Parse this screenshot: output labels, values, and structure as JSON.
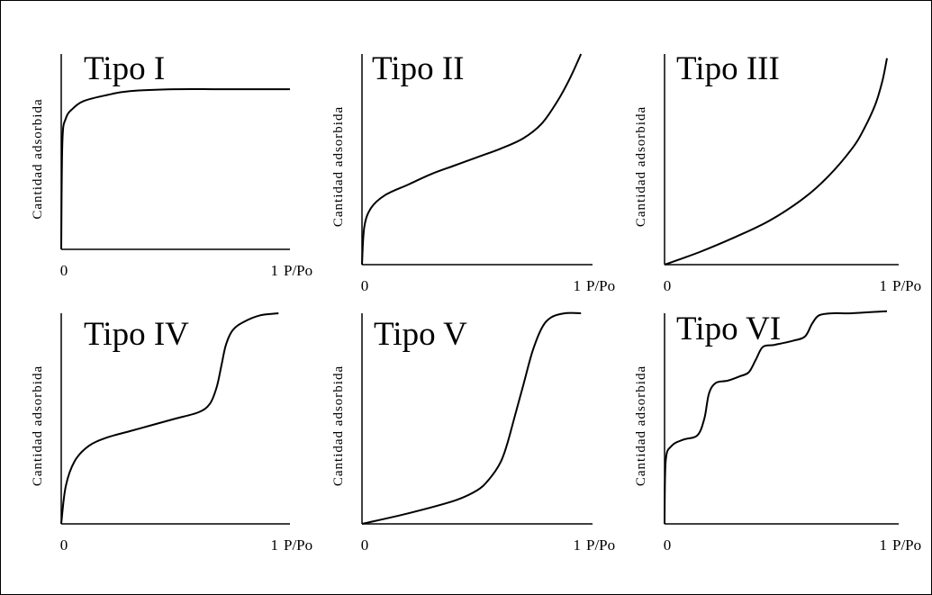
{
  "chart_data": [
    {
      "type": "line",
      "title": "Tipo I",
      "ylabel": "Cantidad adsorbida",
      "x_start_label": "0",
      "x_end_label": "1",
      "x_unit_label": "P/Po",
      "xlim": [
        0,
        1
      ],
      "ylim": [
        0,
        1
      ],
      "curve_color": "#000000",
      "series": [
        {
          "x": [
            0,
            0.005,
            0.02,
            0.05,
            0.1,
            0.2,
            0.3,
            0.5,
            0.7,
            1.0
          ],
          "values": [
            0,
            0.55,
            0.67,
            0.72,
            0.76,
            0.79,
            0.81,
            0.82,
            0.82,
            0.82
          ]
        }
      ]
    },
    {
      "type": "line",
      "title": "Tipo II",
      "ylabel": "Cantidad adsorbida",
      "x_start_label": "0",
      "x_end_label": "1",
      "x_unit_label": "P/Po",
      "xlim": [
        0,
        1
      ],
      "ylim": [
        0,
        1
      ],
      "curve_color": "#000000",
      "series": [
        {
          "x": [
            0,
            0.01,
            0.04,
            0.1,
            0.2,
            0.3,
            0.4,
            0.5,
            0.6,
            0.7,
            0.78,
            0.85,
            0.9,
            0.95
          ],
          "values": [
            0,
            0.18,
            0.27,
            0.33,
            0.38,
            0.43,
            0.47,
            0.51,
            0.55,
            0.6,
            0.67,
            0.78,
            0.88,
            1.0
          ]
        }
      ]
    },
    {
      "type": "line",
      "title": "Tipo III",
      "ylabel": "Cantidad adsorbida",
      "x_start_label": "0",
      "x_end_label": "1",
      "x_unit_label": "P/Po",
      "xlim": [
        0,
        1
      ],
      "ylim": [
        0,
        1
      ],
      "curve_color": "#000000",
      "series": [
        {
          "x": [
            0,
            0.15,
            0.3,
            0.45,
            0.6,
            0.7,
            0.8,
            0.85,
            0.9,
            0.93,
            0.95
          ],
          "values": [
            0,
            0.06,
            0.13,
            0.21,
            0.32,
            0.42,
            0.55,
            0.64,
            0.76,
            0.87,
            0.98
          ]
        }
      ]
    },
    {
      "type": "line",
      "title": "Tipo IV",
      "ylabel": "Cantidad adsorbida",
      "x_start_label": "0",
      "x_end_label": "1",
      "x_unit_label": "P/Po",
      "xlim": [
        0,
        1
      ],
      "ylim": [
        0,
        1
      ],
      "curve_color": "#000000",
      "series": [
        {
          "x": [
            0,
            0.02,
            0.06,
            0.12,
            0.2,
            0.3,
            0.4,
            0.5,
            0.6,
            0.65,
            0.68,
            0.7,
            0.72,
            0.75,
            0.8,
            0.87,
            0.95
          ],
          "values": [
            0,
            0.18,
            0.3,
            0.37,
            0.41,
            0.44,
            0.47,
            0.5,
            0.53,
            0.57,
            0.65,
            0.75,
            0.85,
            0.92,
            0.96,
            0.99,
            1.0
          ]
        }
      ]
    },
    {
      "type": "line",
      "title": "Tipo V",
      "ylabel": "Cantidad adsorbida",
      "x_start_label": "0",
      "x_end_label": "1",
      "x_unit_label": "P/Po",
      "xlim": [
        0,
        1
      ],
      "ylim": [
        0,
        1
      ],
      "curve_color": "#000000",
      "series": [
        {
          "x": [
            0,
            0.2,
            0.4,
            0.5,
            0.55,
            0.6,
            0.63,
            0.66,
            0.7,
            0.74,
            0.78,
            0.82,
            0.88,
            0.95
          ],
          "values": [
            0,
            0.05,
            0.11,
            0.16,
            0.21,
            0.29,
            0.38,
            0.5,
            0.66,
            0.82,
            0.93,
            0.98,
            1.0,
            1.0
          ]
        }
      ]
    },
    {
      "type": "line",
      "title": "Tipo VI",
      "ylabel": "Cantidad adsorbida",
      "x_start_label": "0",
      "x_end_label": "1",
      "x_unit_label": "P/Po",
      "xlim": [
        0,
        1
      ],
      "ylim": [
        0,
        1
      ],
      "curve_color": "#000000",
      "series": [
        {
          "x": [
            0,
            0.005,
            0.03,
            0.08,
            0.14,
            0.17,
            0.19,
            0.22,
            0.27,
            0.32,
            0.36,
            0.39,
            0.42,
            0.47,
            0.55,
            0.6,
            0.63,
            0.66,
            0.72,
            0.8,
            0.95
          ],
          "values": [
            0,
            0.3,
            0.37,
            0.4,
            0.42,
            0.5,
            0.62,
            0.67,
            0.68,
            0.7,
            0.72,
            0.78,
            0.84,
            0.85,
            0.87,
            0.89,
            0.95,
            0.99,
            1.0,
            1.0,
            1.01
          ]
        }
      ]
    }
  ]
}
